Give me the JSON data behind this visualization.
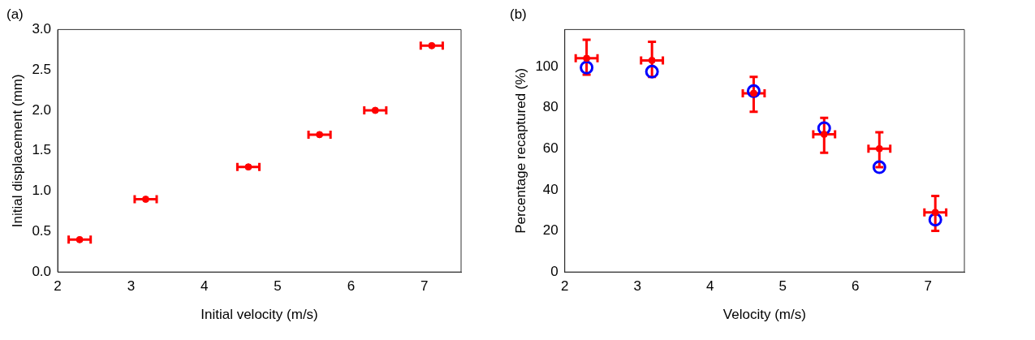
{
  "chart_data": [
    {
      "type": "scatter",
      "title": "(a)",
      "xlabel": "Initial velocity (m/s)",
      "ylabel": "Initial displacement (mm)",
      "xlim": [
        2,
        7.5
      ],
      "xticks": [
        2,
        3,
        4,
        5,
        6,
        7
      ],
      "ylim": [
        0,
        3
      ],
      "yticks": [
        {
          "value": 0,
          "label": "0.0"
        },
        {
          "value": 0.5,
          "label": "0.5"
        },
        {
          "value": 1,
          "label": "1.0"
        },
        {
          "value": 1.5,
          "label": "1.5"
        },
        {
          "value": 2,
          "label": "2.0"
        },
        {
          "value": 2.5,
          "label": "2.5"
        },
        {
          "value": 3,
          "label": "3.0"
        }
      ],
      "grid": false,
      "legend": false,
      "marker": "circle",
      "series": [
        {
          "color": "#ff0000",
          "x": [
            2.3,
            3.2,
            4.6,
            5.57,
            6.33,
            7.1
          ],
          "values": [
            0.4,
            0.9,
            1.3,
            1.7,
            2.0,
            2.8
          ],
          "xerrors": [
            0.15,
            0.15,
            0.15,
            0.15,
            0.15,
            0.15
          ]
        }
      ]
    },
    {
      "type": "scatter",
      "title": "(b)",
      "xlabel": "Velocity (m/s)",
      "ylabel": "Percentage recaptured (%)",
      "xlim": [
        2,
        7.5
      ],
      "xticks": [
        2,
        3,
        4,
        5,
        6,
        7
      ],
      "ylim": [
        0,
        118
      ],
      "yticks": [
        0,
        20,
        40,
        60,
        80,
        100
      ],
      "grid": false,
      "legend": false,
      "marker": "circle",
      "series": [
        {
          "color": "#ff0000",
          "x": [
            2.3,
            3.2,
            4.6,
            5.57,
            6.33,
            7.1
          ],
          "values": [
            104,
            103,
            87,
            67,
            60,
            29
          ],
          "xerrors": [
            0.15,
            0.15,
            0.15,
            0.15,
            0.15,
            0.15
          ],
          "errors": [
            [
              96,
              113
            ],
            [
              95,
              112
            ],
            [
              78,
              95
            ],
            [
              58,
              75
            ],
            [
              51,
              68
            ],
            [
              20,
              37
            ]
          ]
        },
        {
          "color": "#0000ff",
          "x": [
            2.3,
            3.2,
            4.6,
            5.57,
            6.33,
            7.1
          ],
          "values": [
            99.5,
            97.5,
            88,
            70,
            51,
            25.5
          ]
        }
      ]
    }
  ]
}
